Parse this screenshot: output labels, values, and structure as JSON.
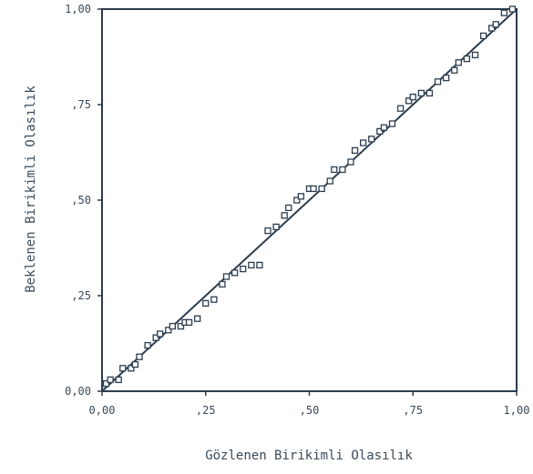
{
  "chart_data": {
    "type": "scatter",
    "title": "",
    "xlabel": "Gözlenen Birikimli Olasılık",
    "ylabel": "Beklenen Birikimli Olasılık",
    "xlim": [
      0,
      1
    ],
    "ylim": [
      0,
      1
    ],
    "x_ticks": [
      {
        "value": 0,
        "label": "0,00"
      },
      {
        "value": 0.25,
        "label": ",25"
      },
      {
        "value": 0.5,
        "label": ",50"
      },
      {
        "value": 0.75,
        "label": ",75"
      },
      {
        "value": 1,
        "label": "1,00"
      }
    ],
    "y_ticks": [
      {
        "value": 0,
        "label": "0,00"
      },
      {
        "value": 0.25,
        "label": ",25"
      },
      {
        "value": 0.5,
        "label": ",50"
      },
      {
        "value": 0.75,
        "label": ",75"
      },
      {
        "value": 1,
        "label": "1,00"
      }
    ],
    "grid": false,
    "reference_line": {
      "from": [
        0,
        0
      ],
      "to": [
        1,
        1
      ]
    },
    "points": [
      {
        "x": 0.01,
        "y": 0.02
      },
      {
        "x": 0.02,
        "y": 0.03
      },
      {
        "x": 0.04,
        "y": 0.03
      },
      {
        "x": 0.05,
        "y": 0.06
      },
      {
        "x": 0.07,
        "y": 0.06
      },
      {
        "x": 0.08,
        "y": 0.07
      },
      {
        "x": 0.09,
        "y": 0.09
      },
      {
        "x": 0.11,
        "y": 0.12
      },
      {
        "x": 0.13,
        "y": 0.14
      },
      {
        "x": 0.14,
        "y": 0.15
      },
      {
        "x": 0.16,
        "y": 0.16
      },
      {
        "x": 0.17,
        "y": 0.17
      },
      {
        "x": 0.19,
        "y": 0.17
      },
      {
        "x": 0.2,
        "y": 0.18
      },
      {
        "x": 0.21,
        "y": 0.18
      },
      {
        "x": 0.23,
        "y": 0.19
      },
      {
        "x": 0.25,
        "y": 0.23
      },
      {
        "x": 0.27,
        "y": 0.24
      },
      {
        "x": 0.29,
        "y": 0.28
      },
      {
        "x": 0.3,
        "y": 0.3
      },
      {
        "x": 0.32,
        "y": 0.31
      },
      {
        "x": 0.34,
        "y": 0.32
      },
      {
        "x": 0.36,
        "y": 0.33
      },
      {
        "x": 0.38,
        "y": 0.33
      },
      {
        "x": 0.4,
        "y": 0.42
      },
      {
        "x": 0.42,
        "y": 0.43
      },
      {
        "x": 0.44,
        "y": 0.46
      },
      {
        "x": 0.45,
        "y": 0.48
      },
      {
        "x": 0.47,
        "y": 0.5
      },
      {
        "x": 0.48,
        "y": 0.51
      },
      {
        "x": 0.5,
        "y": 0.53
      },
      {
        "x": 0.51,
        "y": 0.53
      },
      {
        "x": 0.53,
        "y": 0.53
      },
      {
        "x": 0.55,
        "y": 0.55
      },
      {
        "x": 0.56,
        "y": 0.58
      },
      {
        "x": 0.58,
        "y": 0.58
      },
      {
        "x": 0.6,
        "y": 0.6
      },
      {
        "x": 0.61,
        "y": 0.63
      },
      {
        "x": 0.63,
        "y": 0.65
      },
      {
        "x": 0.65,
        "y": 0.66
      },
      {
        "x": 0.67,
        "y": 0.68
      },
      {
        "x": 0.68,
        "y": 0.69
      },
      {
        "x": 0.7,
        "y": 0.7
      },
      {
        "x": 0.72,
        "y": 0.74
      },
      {
        "x": 0.74,
        "y": 0.76
      },
      {
        "x": 0.75,
        "y": 0.77
      },
      {
        "x": 0.77,
        "y": 0.78
      },
      {
        "x": 0.79,
        "y": 0.78
      },
      {
        "x": 0.81,
        "y": 0.81
      },
      {
        "x": 0.83,
        "y": 0.82
      },
      {
        "x": 0.85,
        "y": 0.84
      },
      {
        "x": 0.86,
        "y": 0.86
      },
      {
        "x": 0.88,
        "y": 0.87
      },
      {
        "x": 0.9,
        "y": 0.88
      },
      {
        "x": 0.92,
        "y": 0.93
      },
      {
        "x": 0.94,
        "y": 0.95
      },
      {
        "x": 0.95,
        "y": 0.96
      },
      {
        "x": 0.97,
        "y": 0.99
      },
      {
        "x": 0.99,
        "y": 1.0
      }
    ]
  },
  "colors": {
    "ink": "#2c3d4e",
    "text": "#3a4a5a",
    "marker_fill": "#ffffff"
  }
}
